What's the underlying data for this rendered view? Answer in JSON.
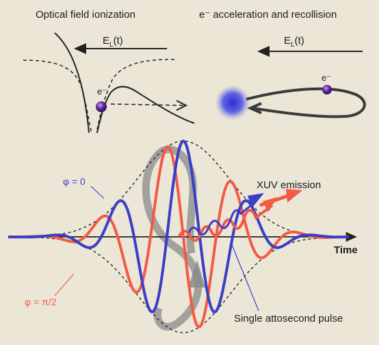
{
  "top_left": {
    "title": "Optical field ionization",
    "field_label": "E",
    "field_sub": "L",
    "field_arg": "(t)",
    "electron": "e⁻"
  },
  "top_right": {
    "title": "e⁻ acceleration and recollision",
    "field_label": "E",
    "field_sub": "L",
    "field_arg": "(t)",
    "electron": "e⁻"
  },
  "bottom": {
    "phi0_label": "φ = 0",
    "phi90_label": "φ = π/2",
    "xuv_label": "XUV emission",
    "time_label": "Time",
    "pulse_label": "Single attosecond pulse"
  },
  "colors": {
    "blue_wave": "#3a3ec6",
    "red_wave": "#f25a45",
    "electron": "#6b2fa8",
    "ion": "#3b3ccf"
  }
}
